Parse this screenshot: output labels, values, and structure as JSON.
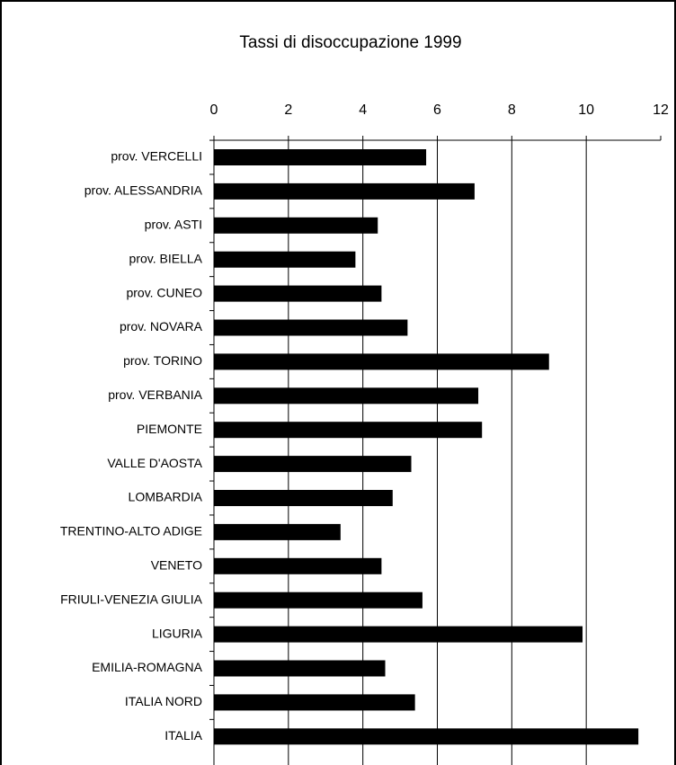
{
  "chart_data": {
    "type": "barh",
    "title": "Tassi di disoccupazione 1999",
    "categories": [
      "prov. VERCELLI",
      "prov. ALESSANDRIA",
      "prov. ASTI",
      "prov. BIELLA",
      "prov. CUNEO",
      "prov. NOVARA",
      "prov. TORINO",
      "prov. VERBANIA",
      "PIEMONTE",
      "VALLE D'AOSTA",
      "LOMBARDIA",
      "TRENTINO-ALTO ADIGE",
      "VENETO",
      "FRIULI-VENEZIA GIULIA",
      "LIGURIA",
      "EMILIA-ROMAGNA",
      "ITALIA NORD",
      "ITALIA"
    ],
    "values": [
      5.7,
      7.0,
      4.4,
      3.8,
      4.5,
      5.2,
      9.0,
      7.1,
      7.2,
      5.3,
      4.8,
      3.4,
      4.5,
      5.6,
      9.9,
      4.6,
      5.4,
      11.4
    ],
    "color": "#000000",
    "xlim": [
      0,
      12
    ],
    "xticks": [
      0,
      2,
      4,
      6,
      8,
      10,
      12
    ],
    "grid": true
  }
}
